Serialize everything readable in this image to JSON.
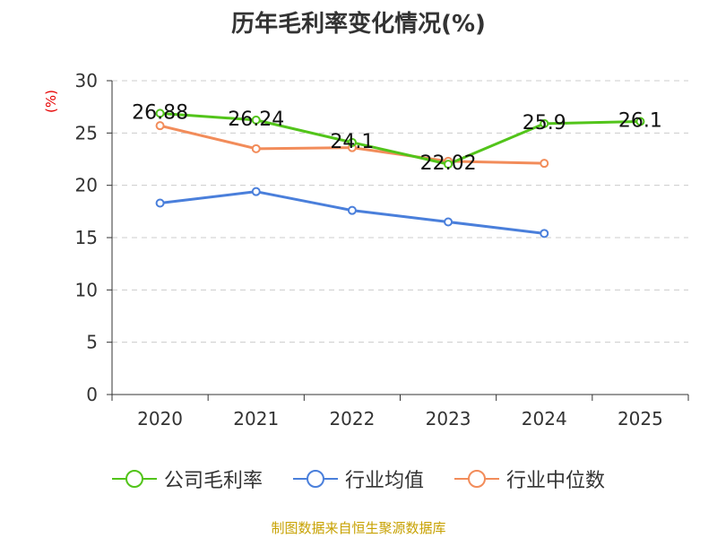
{
  "chart_data": {
    "type": "line",
    "title": "历年毛利率变化情况(%)",
    "ylabel": "(%)",
    "categories": [
      "2020",
      "2021",
      "2022",
      "2023",
      "2024",
      "2025"
    ],
    "ylim": [
      0,
      30
    ],
    "yticks": [
      0,
      5,
      10,
      15,
      20,
      25,
      30
    ],
    "grid": true,
    "legend_position": "bottom",
    "series": [
      {
        "name": "公司毛利率",
        "color": "#52c41a",
        "values": [
          26.88,
          26.24,
          24.1,
          22.02,
          25.9,
          26.1
        ],
        "labels": [
          "26.88",
          "26.24",
          "24.1",
          "22.02",
          "25.9",
          "26.1"
        ]
      },
      {
        "name": "行业均值",
        "color": "#4a7fdb",
        "values": [
          18.3,
          19.4,
          17.6,
          16.5,
          15.4,
          null
        ]
      },
      {
        "name": "行业中位数",
        "color": "#f28c5a",
        "values": [
          25.7,
          23.5,
          23.6,
          22.3,
          22.1,
          null
        ]
      }
    ]
  },
  "footer": "制图数据来自恒生聚源数据库"
}
